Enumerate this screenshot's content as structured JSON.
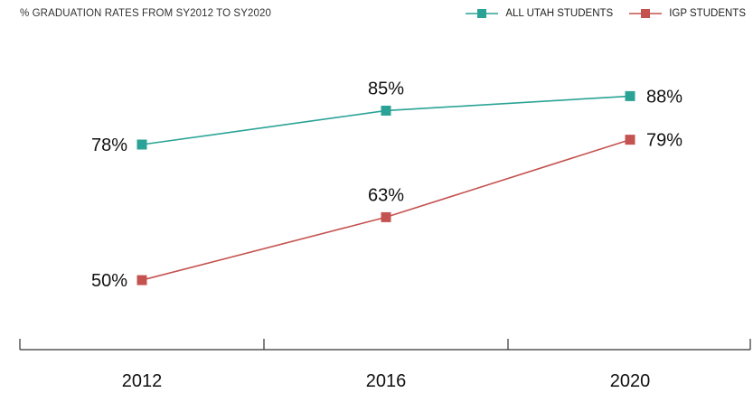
{
  "header": {
    "title": "% GRADUATION RATES FROM SY2012 TO SY2020"
  },
  "legend": [
    {
      "label": "ALL UTAH STUDENTS",
      "color": "#2aa396"
    },
    {
      "label": "IGP STUDENTS",
      "color": "#c4524f"
    }
  ],
  "chart_data": {
    "type": "line",
    "title": "% GRADUATION RATES FROM SY2012 TO SY2020",
    "categories": [
      "2012",
      "2016",
      "2020"
    ],
    "series": [
      {
        "name": "ALL UTAH STUDENTS",
        "values": [
          78,
          85,
          88
        ],
        "labels": [
          "78%",
          "85%",
          "88%"
        ],
        "color": "#2aa396"
      },
      {
        "name": "IGP STUDENTS",
        "values": [
          50,
          63,
          79
        ],
        "labels": [
          "50%",
          "63%",
          "79%"
        ],
        "color": "#c4524f"
      }
    ],
    "xlabel": "",
    "ylabel": "",
    "ylim": [
      40,
      95
    ],
    "grid": false,
    "legend_position": "top-right"
  }
}
